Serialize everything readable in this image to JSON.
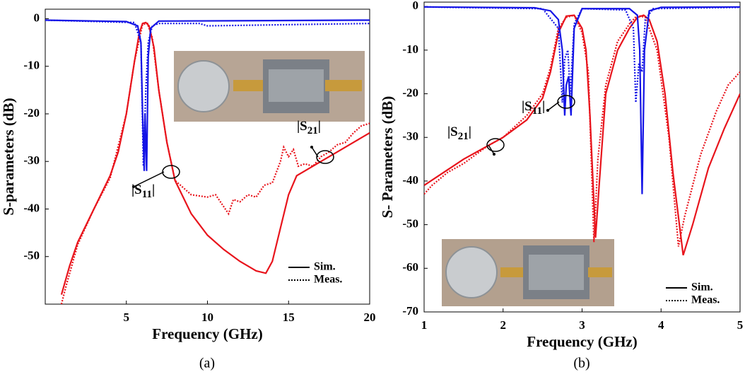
{
  "chart_data": [
    {
      "type": "line",
      "xlabel": "Frequency (GHz)",
      "ylabel": "S-parameters (dB)",
      "caption": "(a)",
      "xlim": [
        0,
        20
      ],
      "ylim": [
        -60,
        2
      ],
      "xticks": [
        5,
        10,
        15,
        20
      ],
      "yticks": [
        0,
        -10,
        -20,
        -30,
        -40,
        -50
      ],
      "legend": [
        {
          "name": "Sim.",
          "style": "solid"
        },
        {
          "name": "Meas.",
          "style": "dotted"
        }
      ],
      "legend_position": "lower right",
      "annotations": [
        {
          "prefix": "|S",
          "sub": "11",
          "suffix": "|"
        },
        {
          "prefix": "|S",
          "sub": "21",
          "suffix": "|"
        }
      ],
      "series": [
        {
          "color": "#e8141c",
          "style": "solid",
          "x": [
            1.0,
            1.5,
            2,
            3,
            4,
            4.5,
            5,
            5.5,
            5.8,
            6,
            6.2,
            6.4,
            6.7,
            7,
            7.5,
            8,
            9,
            10,
            11,
            12,
            13,
            13.6,
            14,
            14.5,
            15,
            15.5,
            16,
            17,
            18,
            19,
            20
          ],
          "values": [
            -58,
            -52,
            -47,
            -40,
            -33,
            -28,
            -20,
            -9,
            -3,
            -1,
            -0.8,
            -1.5,
            -6,
            -15,
            -26,
            -34,
            -41,
            -45.5,
            -48.5,
            -51,
            -53,
            -53.5,
            -51,
            -44,
            -37,
            -33,
            -32,
            -30,
            -28,
            -26,
            -24
          ]
        },
        {
          "color": "#e8141c",
          "style": "dotted",
          "x": [
            1.0,
            1.3,
            2,
            3,
            4,
            5,
            5.5,
            6,
            6.3,
            6.6,
            7,
            7.5,
            8,
            9,
            10,
            10.5,
            11,
            11.3,
            11.6,
            12,
            12.5,
            13,
            13.5,
            14,
            14.5,
            14.7,
            15,
            15.3,
            15.6,
            16,
            16.5,
            17,
            17.5,
            18,
            18.5,
            19,
            19.5,
            20
          ],
          "values": [
            -60,
            -56,
            -47.5,
            -40,
            -33.5,
            -20,
            -9,
            -1.2,
            -1,
            -4,
            -15,
            -26,
            -34,
            -37,
            -37.5,
            -37,
            -39.5,
            -41,
            -38,
            -38.5,
            -37,
            -37.5,
            -35,
            -34.5,
            -30,
            -27,
            -29,
            -27.5,
            -31,
            -30.5,
            -31,
            -29,
            -28,
            -26.5,
            -26,
            -24,
            -22.5,
            -22
          ]
        },
        {
          "color": "#1414e6",
          "style": "solid",
          "x": [
            0,
            5,
            5.7,
            5.9,
            6.0,
            6.1,
            6.15,
            6.25,
            6.35,
            6.5,
            7,
            20
          ],
          "values": [
            -0.3,
            -0.6,
            -1.5,
            -5,
            -20,
            -32,
            -20,
            -32,
            -8,
            -2,
            -0.5,
            -0.3
          ]
        },
        {
          "color": "#1414e6",
          "style": "dotted",
          "x": [
            0,
            5.5,
            5.9,
            6.05,
            6.2,
            6.35,
            6.6,
            7,
            9.5,
            10,
            20
          ],
          "values": [
            -0.3,
            -0.8,
            -5,
            -31,
            -15,
            -5,
            -1.5,
            -1,
            -1,
            -1.5,
            -1
          ]
        }
      ]
    },
    {
      "type": "line",
      "xlabel": "Frequency (GHz)",
      "ylabel": "S- Parameters (dB)",
      "caption": "(b)",
      "xlim": [
        1,
        5
      ],
      "ylim": [
        -70,
        1
      ],
      "xticks": [
        1,
        2,
        3,
        4,
        5
      ],
      "yticks": [
        0,
        -10,
        -20,
        -30,
        -40,
        -50,
        -60,
        -70
      ],
      "legend": [
        {
          "name": "Sim.",
          "style": "solid"
        },
        {
          "name": "Meas.",
          "style": "dotted"
        }
      ],
      "legend_position": "lower right",
      "annotations": [
        {
          "prefix": "|S",
          "sub": "21",
          "suffix": "|"
        },
        {
          "prefix": "|S",
          "sub": "11",
          "suffix": "|"
        }
      ],
      "series": [
        {
          "color": "#e8141c",
          "style": "solid",
          "x": [
            1,
            1.5,
            2,
            2.3,
            2.5,
            2.6,
            2.7,
            2.8,
            2.9,
            3.0,
            3.05,
            3.1,
            3.17,
            3.22,
            3.3,
            3.45,
            3.6,
            3.7,
            3.78,
            3.85,
            3.95,
            4.05,
            4.15,
            4.28,
            4.4,
            4.6,
            4.8,
            5
          ],
          "values": [
            -41,
            -35,
            -30,
            -26,
            -21,
            -15,
            -6,
            -2.2,
            -2,
            -5,
            -10,
            -25,
            -53,
            -40,
            -20,
            -10,
            -5,
            -2.5,
            -2,
            -3,
            -8,
            -20,
            -38,
            -57,
            -50,
            -37,
            -28,
            -20
          ]
        },
        {
          "color": "#e8141c",
          "style": "dotted",
          "x": [
            1,
            1.1,
            1.3,
            1.5,
            1.8,
            2,
            2.3,
            2.5,
            2.6,
            2.7,
            2.8,
            2.9,
            3.0,
            3.08,
            3.15,
            3.2,
            3.3,
            3.45,
            3.6,
            3.7,
            3.8,
            3.95,
            4.1,
            4.22,
            4.3,
            4.5,
            4.7,
            4.85,
            5
          ],
          "values": [
            -43,
            -41,
            -38,
            -36,
            -32,
            -30,
            -25,
            -20,
            -14,
            -5,
            -2.5,
            -2,
            -6,
            -15,
            -54,
            -35,
            -18,
            -8,
            -4,
            -2,
            -2.5,
            -10,
            -30,
            -55,
            -48,
            -34,
            -24,
            -18,
            -15
          ]
        },
        {
          "color": "#1414e6",
          "style": "solid",
          "x": [
            1,
            2.4,
            2.6,
            2.7,
            2.75,
            2.78,
            2.8,
            2.83,
            2.86,
            2.9,
            3.0,
            3.6,
            3.7,
            3.73,
            3.76,
            3.79,
            3.85,
            4,
            5
          ],
          "values": [
            -0.1,
            -0.3,
            -1,
            -3,
            -10,
            -25,
            -18,
            -16,
            -25,
            -5,
            -0.5,
            -0.5,
            -2,
            -10,
            -43,
            -10,
            -1,
            -0.2,
            -0.1
          ]
        },
        {
          "color": "#1414e6",
          "style": "dotted",
          "x": [
            1,
            2.5,
            2.7,
            2.75,
            2.78,
            2.82,
            2.85,
            2.9,
            3.0,
            3.55,
            3.65,
            3.68,
            3.72,
            3.76,
            3.8,
            3.9,
            5
          ],
          "values": [
            -0.1,
            -0.5,
            -5,
            -22,
            -12,
            -10,
            -20,
            -4,
            -0.5,
            -0.8,
            -5,
            -22,
            -13,
            -15,
            -3,
            -0.5,
            -0.2
          ]
        }
      ]
    }
  ]
}
